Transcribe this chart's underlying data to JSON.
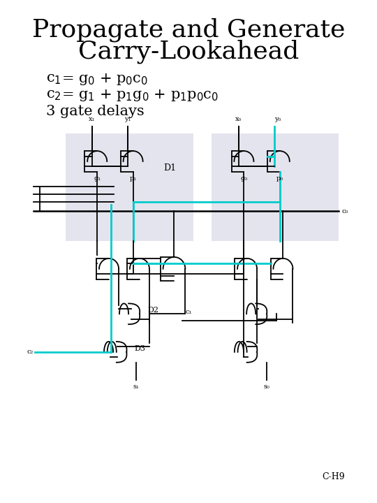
{
  "title_line1": "Propagate and Generate",
  "title_line2": "Carry-Lookahead",
  "eq1": "c",
  "eq2": "c",
  "eq3": "3 gate delays",
  "footnote": "C-H9",
  "bg_color": "#ffffff",
  "wire_black": "#000000",
  "wire_cyan": "#00cccc",
  "box_fill": "#e4e4ee",
  "title_fontsize": 26,
  "eq_fontsize": 15,
  "label_fontsize": 7
}
